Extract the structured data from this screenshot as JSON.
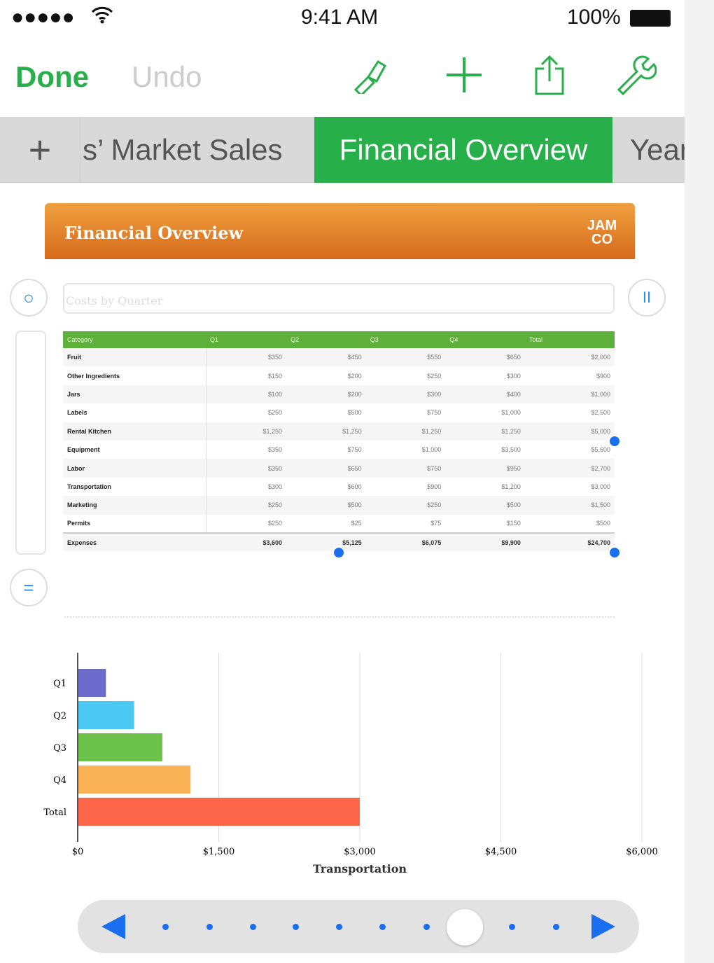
{
  "status_bar": {
    "signal": "●●●●●",
    "time": "9:41 AM",
    "battery": "100%"
  },
  "toolbar": {
    "done": "Done",
    "undo": "Undo",
    "icons": [
      "paintbrush-icon",
      "plus-icon",
      "share-icon",
      "wrench-icon"
    ]
  },
  "tabs": {
    "add": "+",
    "items": [
      {
        "label": "s’ Market Sales"
      },
      {
        "label": "Financial Overview",
        "active": true
      },
      {
        "label": "Year"
      }
    ]
  },
  "banner": {
    "title": "Financial Overview",
    "logo": "JAM CO"
  },
  "chart_title_placeholder": "Costs by Quarter",
  "table": {
    "headers": [
      "Category",
      "Q1",
      "Q2",
      "Q3",
      "Q4",
      "Total"
    ],
    "rows": [
      [
        "Fruit",
        "$350",
        "$450",
        "$550",
        "$650",
        "$2,000"
      ],
      [
        "Other Ingredients",
        "$150",
        "$200",
        "$250",
        "$300",
        "$900"
      ],
      [
        "Jars",
        "$100",
        "$200",
        "$300",
        "$400",
        "$1,000"
      ],
      [
        "Labels",
        "$250",
        "$500",
        "$750",
        "$1,000",
        "$2,500"
      ],
      [
        "Rental Kitchen",
        "$1,250",
        "$1,250",
        "$1,250",
        "$1,250",
        "$5,000"
      ],
      [
        "Equipment",
        "$350",
        "$750",
        "$1,000",
        "$3,500",
        "$5,600"
      ],
      [
        "Labor",
        "$350",
        "$650",
        "$750",
        "$950",
        "$2,700"
      ],
      [
        "Transportation",
        "$300",
        "$600",
        "$900",
        "$1,200",
        "$3,000"
      ],
      [
        "Marketing",
        "$250",
        "$500",
        "$250",
        "$500",
        "$1,500"
      ],
      [
        "Permits",
        "$250",
        "$25",
        "$75",
        "$150",
        "$500"
      ]
    ],
    "footer": [
      "Expenses",
      "$3,600",
      "$5,125",
      "$6,075",
      "$9,900",
      "$24,700"
    ]
  },
  "chart_data": {
    "type": "bar",
    "orientation": "horizontal",
    "categories": [
      "Q1",
      "Q2",
      "Q3",
      "Q4",
      "Total"
    ],
    "values": [
      300,
      600,
      900,
      1200,
      3000
    ],
    "colors": [
      "#6b6bcc",
      "#4cc8f5",
      "#6cc24a",
      "#fbb254",
      "#fb6548"
    ],
    "xlabel": "Transportation",
    "xlim": [
      0,
      6000
    ],
    "xticks": [
      "$0",
      "$1,500",
      "$3,000",
      "$4,500",
      "$6,000"
    ],
    "grid": true
  },
  "pager": {
    "pages": 11,
    "current": 9
  }
}
